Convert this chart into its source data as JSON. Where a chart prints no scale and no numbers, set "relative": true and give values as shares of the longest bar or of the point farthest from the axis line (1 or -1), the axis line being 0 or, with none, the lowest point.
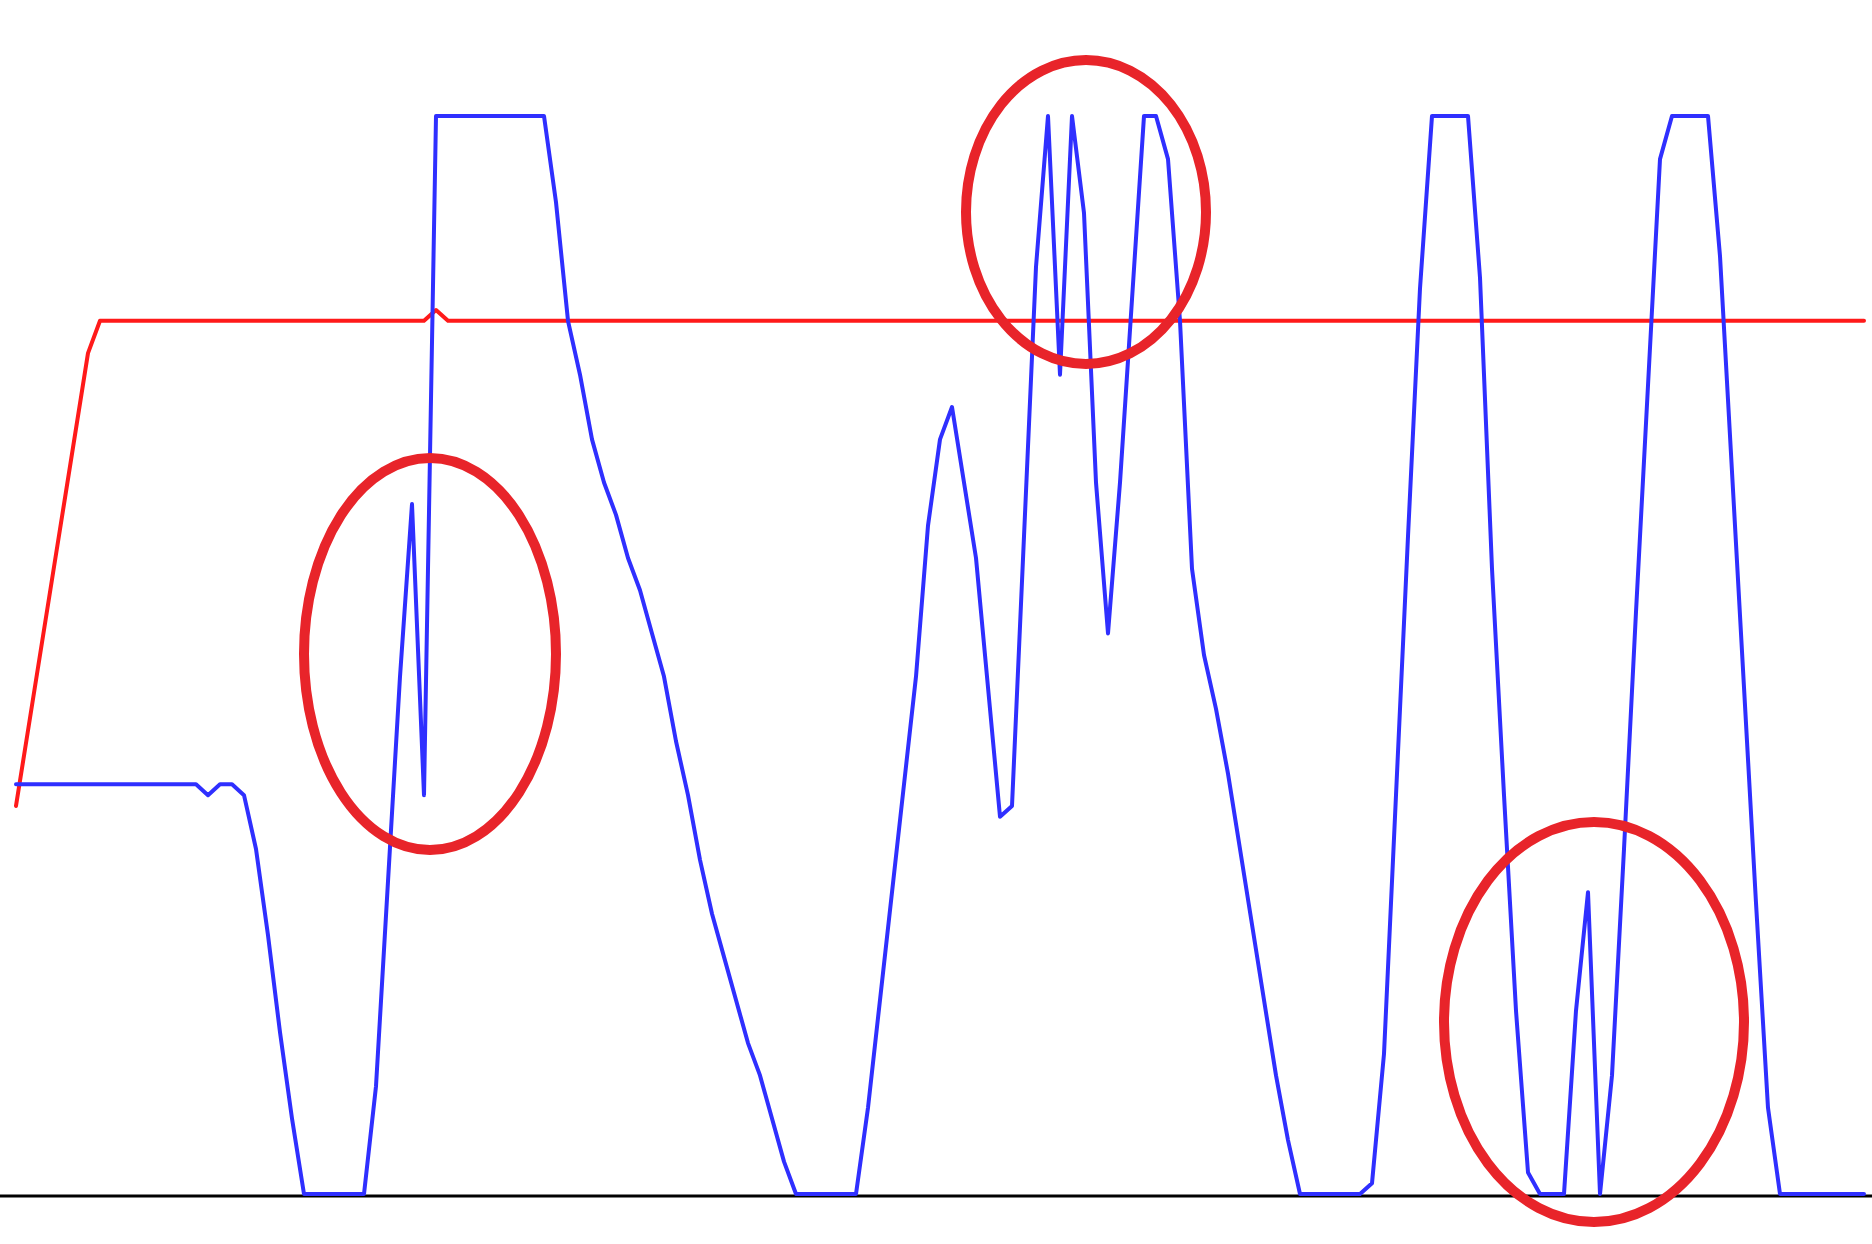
{
  "chart_data": {
    "type": "line",
    "relative": true,
    "line_style": "solid",
    "categories": [
      null,
      null,
      null,
      null,
      null,
      null,
      null,
      null,
      null,
      null,
      null,
      null,
      null,
      null,
      null,
      null,
      null,
      null,
      null,
      null,
      null,
      null,
      null,
      null,
      null,
      null,
      null,
      null,
      null,
      null,
      null,
      null,
      null,
      null,
      null,
      null,
      null,
      null,
      null,
      null,
      null,
      null,
      null,
      null,
      null,
      null,
      null,
      null,
      null,
      null,
      null,
      null,
      null,
      null,
      null,
      null,
      null,
      null,
      null,
      null,
      null,
      null,
      null,
      null,
      null,
      null,
      null,
      null,
      null,
      null,
      null,
      null,
      null,
      null,
      null,
      null,
      null,
      null,
      null,
      null,
      null,
      null,
      null,
      null,
      null,
      null,
      null,
      null,
      null,
      null,
      null,
      null,
      null,
      null,
      null,
      null,
      null,
      null,
      null,
      null,
      null,
      null,
      null,
      null,
      null,
      null,
      null,
      null,
      null,
      null,
      null,
      null,
      null,
      null,
      null,
      null,
      null,
      null,
      null,
      null,
      null,
      null,
      null,
      null,
      null,
      null,
      null,
      null,
      null,
      null,
      null,
      null,
      null,
      null,
      null,
      null,
      null,
      null,
      null,
      null,
      null,
      null,
      null,
      null,
      null,
      null,
      null,
      null,
      null,
      null,
      null,
      null,
      null,
      null,
      null
    ],
    "series": [
      {
        "color": "#ff1a1a",
        "values": [
          0.36,
          0.43,
          0.5,
          0.57,
          0.64,
          0.71,
          0.78,
          0.81,
          0.81,
          0.81,
          0.81,
          0.81,
          0.81,
          0.81,
          0.81,
          0.81,
          0.81,
          0.81,
          0.81,
          0.81,
          0.81,
          0.81,
          0.81,
          0.81,
          0.81,
          0.81,
          0.81,
          0.81,
          0.81,
          0.81,
          0.81,
          0.81,
          0.81,
          0.81,
          0.81,
          0.82,
          0.81,
          0.81,
          0.81,
          0.81,
          0.81,
          0.81,
          0.81,
          0.81,
          0.81,
          0.81,
          0.81,
          0.81,
          0.81,
          0.81,
          0.81,
          0.81,
          0.81,
          0.81,
          0.81,
          0.81,
          0.81,
          0.81,
          0.81,
          0.81,
          0.81,
          0.81,
          0.81,
          0.81,
          0.81,
          0.81,
          0.81,
          0.81,
          0.81,
          0.81,
          0.81,
          0.81,
          0.81,
          0.81,
          0.81,
          0.81,
          0.81,
          0.81,
          0.81,
          0.81,
          0.81,
          0.81,
          0.81,
          0.81,
          0.81,
          0.81,
          0.81,
          0.81,
          0.81,
          0.81,
          0.81,
          0.81,
          0.81,
          0.81,
          0.81,
          0.81,
          0.81,
          0.81,
          0.81,
          0.81,
          0.81,
          0.81,
          0.81,
          0.81,
          0.81,
          0.81,
          0.81,
          0.81,
          0.81,
          0.81,
          0.81,
          0.81,
          0.81,
          0.81,
          0.81,
          0.81,
          0.81,
          0.81,
          0.81,
          0.81,
          0.81,
          0.81,
          0.81,
          0.81,
          0.81,
          0.81,
          0.81,
          0.81,
          0.81,
          0.81,
          0.81,
          0.81,
          0.81,
          0.81,
          0.81,
          0.81,
          0.81,
          0.81,
          0.81,
          0.81,
          0.81,
          0.81,
          0.81,
          0.81,
          0.81,
          0.81,
          0.81,
          0.81,
          0.81,
          0.81,
          0.81,
          0.81,
          0.81,
          0.81,
          0.81
        ]
      },
      {
        "color": "#2f2fff",
        "values": [
          0.38,
          0.38,
          0.38,
          0.38,
          0.38,
          0.38,
          0.38,
          0.38,
          0.38,
          0.38,
          0.38,
          0.38,
          0.38,
          0.38,
          0.38,
          0.38,
          0.37,
          0.38,
          0.38,
          0.37,
          0.32,
          0.24,
          0.15,
          0.07,
          0,
          0,
          0,
          0,
          0,
          0,
          0.1,
          0.29,
          0.48,
          0.64,
          0.37,
          1,
          1,
          1,
          1,
          1,
          1,
          1,
          1,
          1,
          1,
          0.92,
          0.81,
          0.76,
          0.7,
          0.66,
          0.63,
          0.59,
          0.56,
          0.52,
          0.48,
          0.42,
          0.37,
          0.31,
          0.26,
          0.22,
          0.18,
          0.14,
          0.11,
          0.07,
          0.03,
          0,
          0,
          0,
          0,
          0,
          0,
          0.08,
          0.18,
          0.28,
          0.38,
          0.48,
          0.62,
          0.7,
          0.73,
          0.66,
          0.59,
          0.47,
          0.35,
          0.36,
          0.61,
          0.86,
          1,
          0.76,
          1,
          0.91,
          0.66,
          0.52,
          0.66,
          0.83,
          1,
          1,
          0.96,
          0.81,
          0.58,
          0.5,
          0.45,
          0.39,
          0.32,
          0.25,
          0.18,
          0.11,
          0.05,
          0,
          0,
          0,
          0,
          0,
          0,
          0.01,
          0.13,
          0.37,
          0.61,
          0.84,
          1,
          1,
          1,
          1,
          0.85,
          0.58,
          0.37,
          0.17,
          0.02,
          0,
          0,
          0,
          0.17,
          0.28,
          0,
          0.11,
          0.32,
          0.54,
          0.75,
          0.96,
          1,
          1,
          1,
          1,
          0.87,
          0.67,
          0.47,
          0.27,
          0.08,
          0,
          0,
          0,
          0,
          0,
          0,
          0,
          0
        ]
      }
    ]
  }
}
